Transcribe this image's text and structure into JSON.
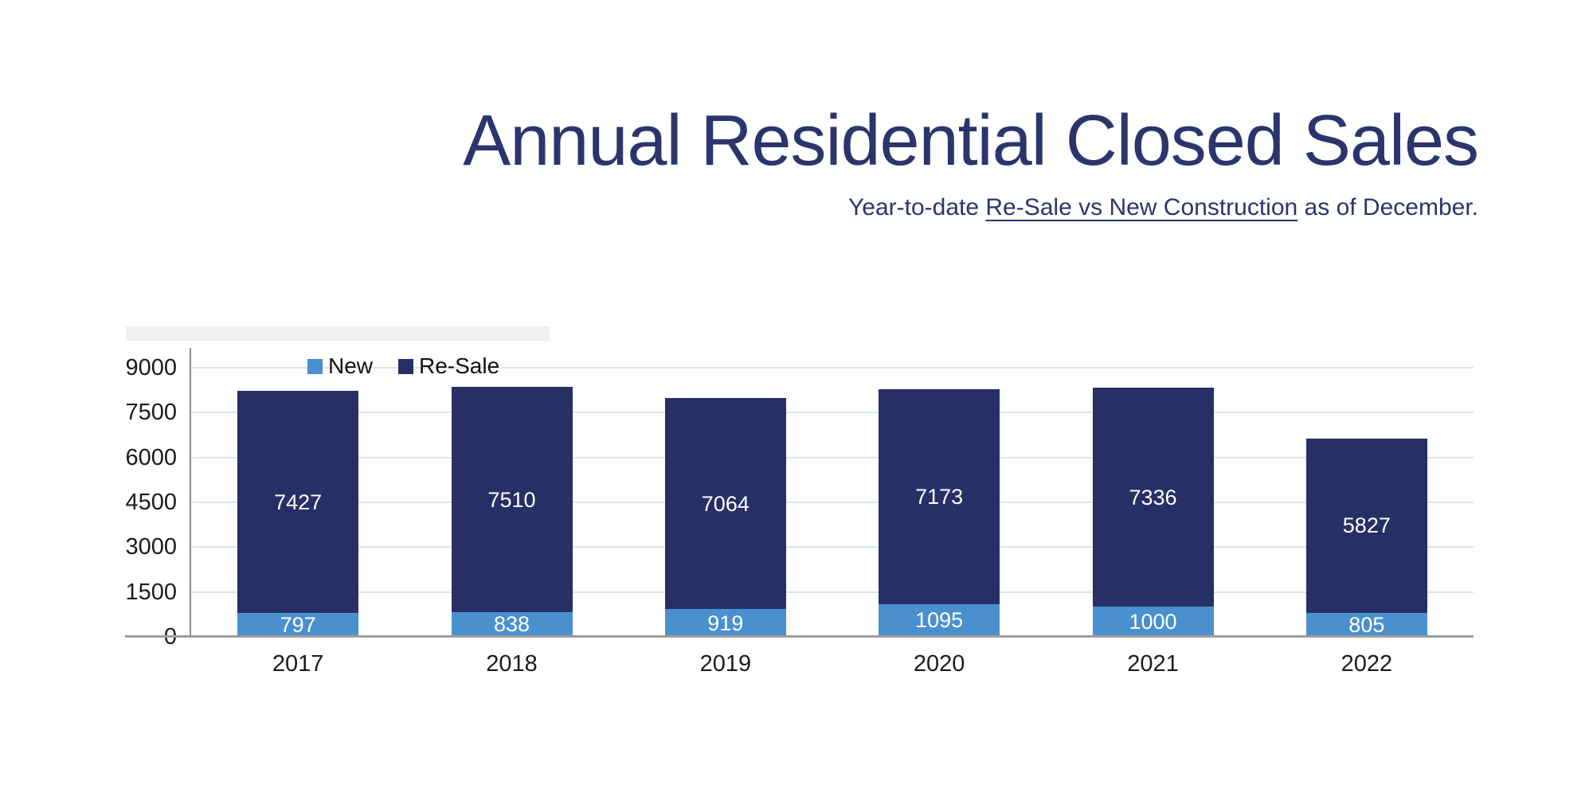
{
  "header": {
    "subtitle_prefix": "Year-to-date ",
    "subtitle_underlined": "Re-Sale vs New Construction",
    "subtitle_suffix": " as of December."
  },
  "legend": {
    "items": [
      {
        "label": "New",
        "color": "#4a90ce"
      },
      {
        "label": "Re-Sale",
        "color": "#272f66"
      }
    ]
  },
  "colors": {
    "title": "#2b356d",
    "new_bar": "#4a90ce",
    "resale_bar": "#272f66",
    "gridline": "#dde3ee",
    "axis_line": "#8f8f8f",
    "baseline": "#9e9e9e",
    "tick_label": "#1b1b1b",
    "bar_value_label": "#ffffff"
  },
  "chart_data": {
    "type": "bar",
    "stacked": true,
    "title": "Annual Residential Closed Sales",
    "subtitle": "Year-to-date Re-Sale vs New Construction as of December.",
    "categories": [
      "2017",
      "2018",
      "2019",
      "2020",
      "2021",
      "2022"
    ],
    "series": [
      {
        "name": "New",
        "color": "#4a90ce",
        "values": [
          797,
          838,
          919,
          1095,
          1000,
          805
        ]
      },
      {
        "name": "Re-Sale",
        "color": "#272f66",
        "values": [
          7427,
          7510,
          7064,
          7173,
          7336,
          5827
        ]
      }
    ],
    "totals": [
      8224,
      8348,
      7983,
      8268,
      8336,
      6632
    ],
    "xlabel": "",
    "ylabel": "",
    "ylim": [
      0,
      9000
    ],
    "yticks": [
      0,
      1500,
      3000,
      4500,
      6000,
      7500,
      9000
    ],
    "grid": true,
    "legend_position": "top-inside-left",
    "value_labels": "inside-segments"
  }
}
